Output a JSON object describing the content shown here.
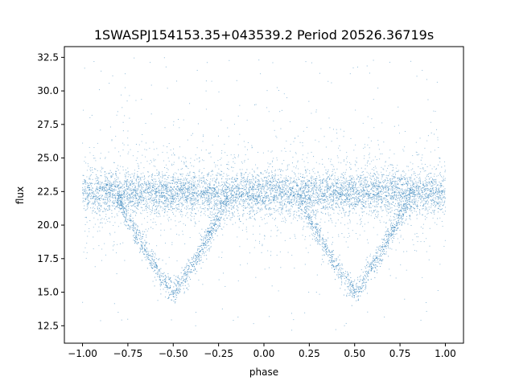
{
  "chart_data": {
    "type": "scatter",
    "title": "1SWASPJ154153.35+043539.2 Period 20526.36719s",
    "xlabel": "phase",
    "ylabel": "flux",
    "xlim": [
      -1.1,
      1.1
    ],
    "ylim": [
      11.2,
      33.3
    ],
    "xticks": [
      -1.0,
      -0.75,
      -0.5,
      -0.25,
      0.0,
      0.25,
      0.5,
      0.75,
      1.0
    ],
    "xtick_labels": [
      "−1.00",
      "−0.75",
      "−0.50",
      "−0.25",
      "0.00",
      "0.25",
      "0.50",
      "0.75",
      "1.00"
    ],
    "yticks": [
      12.5,
      15.0,
      17.5,
      20.0,
      22.5,
      25.0,
      27.5,
      30.0,
      32.5
    ],
    "ytick_labels": [
      "12.5",
      "15.0",
      "17.5",
      "20.0",
      "22.5",
      "25.0",
      "27.5",
      "30.0",
      "32.5"
    ],
    "grid": false,
    "marker_color": "#1f77b4",
    "series": [
      {
        "profile": {
          "baseline_flux": 22.4,
          "x_range": [
            -1.0,
            1.0
          ],
          "eclipse_minima": [
            {
              "phase": -0.5,
              "flux": 15.0
            },
            {
              "phase": 0.5,
              "flux": 15.0
            }
          ],
          "eclipse_start_end": [
            {
              "start": -0.82,
              "end": -0.18
            },
            {
              "start": 0.18,
              "end": 0.82
            }
          ]
        },
        "sampled_points": [
          [
            -1.0,
            22.3
          ],
          [
            -0.95,
            22.5
          ],
          [
            -0.9,
            22.4
          ],
          [
            -0.85,
            22.4
          ],
          [
            -0.8,
            22.0
          ],
          [
            -0.75,
            20.9
          ],
          [
            -0.7,
            19.6
          ],
          [
            -0.65,
            18.2
          ],
          [
            -0.6,
            16.9
          ],
          [
            -0.55,
            15.6
          ],
          [
            -0.5,
            15.0
          ],
          [
            -0.45,
            15.6
          ],
          [
            -0.4,
            16.9
          ],
          [
            -0.35,
            18.2
          ],
          [
            -0.3,
            19.6
          ],
          [
            -0.25,
            20.9
          ],
          [
            -0.2,
            22.0
          ],
          [
            -0.15,
            22.4
          ],
          [
            -0.1,
            22.4
          ],
          [
            -0.05,
            22.4
          ],
          [
            0.0,
            22.4
          ],
          [
            0.05,
            22.4
          ],
          [
            0.1,
            22.4
          ],
          [
            0.15,
            22.4
          ],
          [
            0.2,
            22.0
          ],
          [
            0.25,
            20.9
          ],
          [
            0.3,
            19.6
          ],
          [
            0.35,
            18.2
          ],
          [
            0.4,
            16.9
          ],
          [
            0.45,
            15.6
          ],
          [
            0.5,
            15.0
          ],
          [
            0.55,
            15.6
          ],
          [
            0.6,
            16.9
          ],
          [
            0.65,
            18.2
          ],
          [
            0.7,
            19.6
          ],
          [
            0.75,
            20.9
          ],
          [
            0.8,
            22.0
          ],
          [
            0.85,
            22.4
          ],
          [
            0.9,
            22.4
          ],
          [
            0.95,
            22.5
          ],
          [
            1.0,
            22.3
          ]
        ]
      }
    ]
  }
}
